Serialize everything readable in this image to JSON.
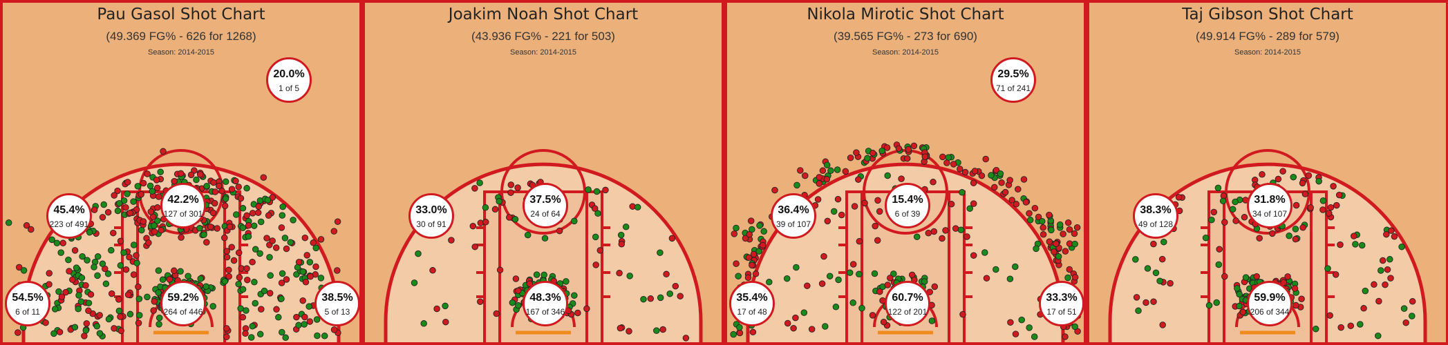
{
  "chart_data": [
    {
      "type": "scatter",
      "title": "Pau Gasol Shot Chart",
      "subtitle": "(49.369 FG% - 626 for 1268)",
      "season": "Season: 2014-2015",
      "zones": [
        {
          "zone": "left-corner-3",
          "pct": "54.5%",
          "made_of": "6 of 11"
        },
        {
          "zone": "left-mid",
          "pct": "45.4%",
          "made_of": "223 of 491"
        },
        {
          "zone": "top-key",
          "pct": "42.2%",
          "made_of": "127 of 301"
        },
        {
          "zone": "paint",
          "pct": "59.2%",
          "made_of": "264 of 446"
        },
        {
          "zone": "right-corner-3",
          "pct": "38.5%",
          "made_of": "5 of 13"
        },
        {
          "zone": "above-break-3",
          "pct": "20.0%",
          "made_of": "1 of 5"
        }
      ],
      "density": {
        "lc3": 11,
        "rc3": 13,
        "ab3": 5,
        "lm": 491,
        "tk": 301,
        "pt": 446
      }
    },
    {
      "type": "scatter",
      "title": "Joakim Noah Shot Chart",
      "subtitle": "(43.936 FG% - 221 for 503)",
      "season": "Season: 2014-2015",
      "zones": [
        {
          "zone": "left-mid",
          "pct": "33.0%",
          "made_of": "30 of 91"
        },
        {
          "zone": "top-key",
          "pct": "37.5%",
          "made_of": "24 of 64"
        },
        {
          "zone": "paint",
          "pct": "48.3%",
          "made_of": "167 of 346"
        }
      ],
      "density": {
        "lc3": 0,
        "rc3": 0,
        "ab3": 0,
        "lm": 91,
        "tk": 64,
        "pt": 346
      }
    },
    {
      "type": "scatter",
      "title": "Nikola Mirotic Shot Chart",
      "subtitle": "(39.565 FG% - 273 for 690)",
      "season": "Season: 2014-2015",
      "zones": [
        {
          "zone": "left-corner-3",
          "pct": "35.4%",
          "made_of": "17 of 48"
        },
        {
          "zone": "left-mid",
          "pct": "36.4%",
          "made_of": "39 of 107"
        },
        {
          "zone": "top-key",
          "pct": "15.4%",
          "made_of": "6 of 39"
        },
        {
          "zone": "paint",
          "pct": "60.7%",
          "made_of": "122 of 201"
        },
        {
          "zone": "right-corner-3",
          "pct": "33.3%",
          "made_of": "17 of 51"
        },
        {
          "zone": "above-break-3",
          "pct": "29.5%",
          "made_of": "71 of 241"
        }
      ],
      "density": {
        "lc3": 48,
        "rc3": 51,
        "ab3": 241,
        "lm": 107,
        "tk": 39,
        "pt": 201
      }
    },
    {
      "type": "scatter",
      "title": "Taj Gibson Shot Chart",
      "subtitle": "(49.914 FG% - 289 for 579)",
      "season": "Season: 2014-2015",
      "zones": [
        {
          "zone": "left-mid",
          "pct": "38.3%",
          "made_of": "49 of 128"
        },
        {
          "zone": "top-key",
          "pct": "31.8%",
          "made_of": "34 of 107"
        },
        {
          "zone": "paint",
          "pct": "59.9%",
          "made_of": "206 of 344"
        }
      ],
      "density": {
        "lc3": 0,
        "rc3": 0,
        "ab3": 0,
        "lm": 128,
        "tk": 107,
        "pt": 344
      }
    }
  ],
  "colors": {
    "background": "#ecb07a",
    "inside_arc": "#f3cba6",
    "paint": "#f0c09a",
    "lines": "#d11a1f",
    "made": "#1a8a1a",
    "missed": "#d11a1f",
    "rim": "#f08a1c"
  }
}
